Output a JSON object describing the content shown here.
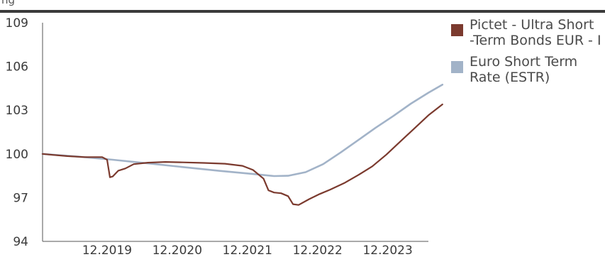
{
  "header": {
    "cut_title": "ng"
  },
  "chart_data": {
    "type": "line",
    "x_tick_labels": [
      "12.2019",
      "12.2020",
      "12.2021",
      "12.2022",
      "12.2023"
    ],
    "x_ticks": [
      2019.92,
      2020.92,
      2021.92,
      2022.92,
      2023.92
    ],
    "xlim": [
      2019.0,
      2024.5
    ],
    "y_ticks": [
      94,
      97,
      100,
      103,
      106,
      109
    ],
    "ylim": [
      94,
      109
    ],
    "legend_position": "right",
    "grid": false,
    "series": [
      {
        "name": "Pictet - Ultra Short -Term Bonds EUR - I",
        "color": "#7b3a2e",
        "points": [
          [
            2019.0,
            100.0
          ],
          [
            2019.15,
            99.93
          ],
          [
            2019.35,
            99.85
          ],
          [
            2019.6,
            99.78
          ],
          [
            2019.85,
            99.78
          ],
          [
            2019.92,
            99.6
          ],
          [
            2019.96,
            98.4
          ],
          [
            2020.0,
            98.45
          ],
          [
            2020.08,
            98.85
          ],
          [
            2020.18,
            99.0
          ],
          [
            2020.3,
            99.3
          ],
          [
            2020.5,
            99.4
          ],
          [
            2020.75,
            99.45
          ],
          [
            2021.0,
            99.42
          ],
          [
            2021.3,
            99.38
          ],
          [
            2021.6,
            99.33
          ],
          [
            2021.85,
            99.18
          ],
          [
            2022.0,
            98.9
          ],
          [
            2022.15,
            98.3
          ],
          [
            2022.22,
            97.5
          ],
          [
            2022.3,
            97.35
          ],
          [
            2022.4,
            97.3
          ],
          [
            2022.5,
            97.1
          ],
          [
            2022.57,
            96.55
          ],
          [
            2022.65,
            96.5
          ],
          [
            2022.8,
            96.9
          ],
          [
            2022.95,
            97.25
          ],
          [
            2023.1,
            97.55
          ],
          [
            2023.3,
            98.0
          ],
          [
            2023.5,
            98.55
          ],
          [
            2023.7,
            99.15
          ],
          [
            2023.9,
            99.95
          ],
          [
            2024.1,
            100.85
          ],
          [
            2024.3,
            101.75
          ],
          [
            2024.5,
            102.65
          ],
          [
            2024.7,
            103.4
          ]
        ]
      },
      {
        "name": "Euro Short Term Rate (ESTR)",
        "color": "#a2b3c8",
        "points": [
          [
            2019.0,
            100.0
          ],
          [
            2019.5,
            99.82
          ],
          [
            2020.0,
            99.6
          ],
          [
            2020.5,
            99.35
          ],
          [
            2021.0,
            99.1
          ],
          [
            2021.5,
            98.85
          ],
          [
            2022.0,
            98.62
          ],
          [
            2022.3,
            98.48
          ],
          [
            2022.5,
            98.5
          ],
          [
            2022.75,
            98.75
          ],
          [
            2023.0,
            99.3
          ],
          [
            2023.25,
            100.1
          ],
          [
            2023.5,
            100.95
          ],
          [
            2023.75,
            101.8
          ],
          [
            2024.0,
            102.6
          ],
          [
            2024.25,
            103.45
          ],
          [
            2024.5,
            104.2
          ],
          [
            2024.7,
            104.75
          ]
        ]
      }
    ]
  }
}
